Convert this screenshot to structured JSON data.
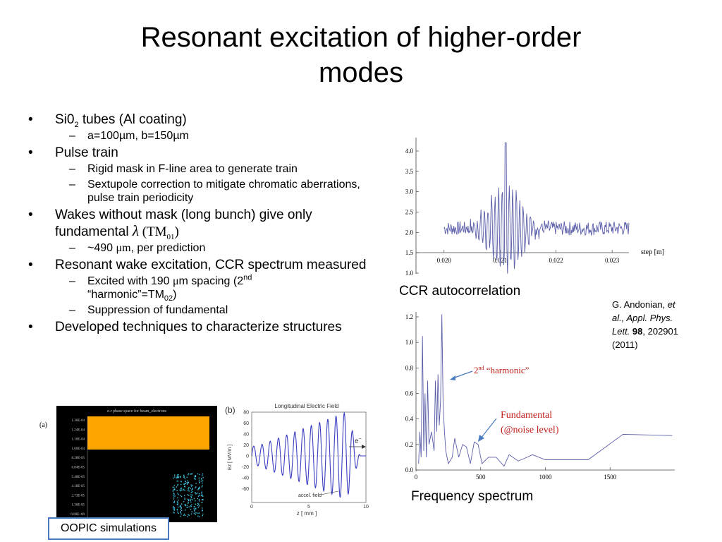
{
  "slide": {
    "title_line1": "Resonant excitation of higher-order",
    "title_line2": "modes"
  },
  "bullets": {
    "b1_pre": "Si0",
    "b1_sub": "2",
    "b1_post": " tubes (Al coating)",
    "b1_s1": "a=100µm, b=150µm",
    "b2": "Pulse train",
    "b2_s1": "Rigid mask in F-line area to generate train",
    "b2_s2": "Sextupole correction to mitigate chromatic aberrations, pulse train periodicity",
    "b3_text": "Wakes without mask (long bunch) give only fundamental ",
    "b3_lambda": "λ",
    "b3_tm": " (TM",
    "b3_tm_sub": "01",
    "b3_tm_end": ")",
    "b3_s1_pre": "~490 ",
    "b3_s1_mu": "μm",
    "b3_s1_post": ", per prediction",
    "b4": "Resonant wake excitation, CCR spectrum measured",
    "b4_s1_pre": "Excited with 190 ",
    "b4_s1_mu": "μ",
    "b4_s1_m": "m spacing (2",
    "b4_s1_sup": "nd",
    "b4_s1_l2": "“harmonic”=TM",
    "b4_s1_sub": "02",
    "b4_s1_end": ")",
    "b4_s2": "Suppression of fundamental",
    "b5": "Developed techniques to characterize structures"
  },
  "captions": {
    "ccr": "CCR autocorrelation",
    "freq": "Frequency spectrum",
    "oopic": "OOPIC simulations",
    "panel_a": "(a)"
  },
  "citation": {
    "authors": "G. Andonian, ",
    "etal": "et al., Appl. Phys. Lett.",
    "vol": "98",
    "rest": ", 202901 (2011)"
  },
  "annotations": {
    "harmonic_num": "2",
    "harmonic_sup": "nd",
    "harmonic_text": " “harmonic”",
    "fund_line1": "Fundamental",
    "fund_line2": "(@noise level)"
  },
  "sim_a": {
    "title": "z-r phase space for beam_electrons",
    "yticks": [
      "1.36E-04",
      "1.24E-04",
      "1.10E-04",
      "1.00E-04",
      "8.28E-05",
      "6.84E-05",
      "5.48E-05",
      "4.18E-05",
      "2.73E-05",
      "1.36E-05",
      "0.00E+00"
    ]
  },
  "sim_b": {
    "label": "(b)",
    "title": "Longitudinal Electric Field",
    "ylabel": "Ez  [ MV/m ]",
    "xlabel": "z  [ mm ]",
    "annotation": "accel. field",
    "electron": "e",
    "yticks": [
      "80",
      "60",
      "40",
      "20",
      "0",
      "-20",
      "-40",
      "-60"
    ],
    "xticks": [
      "0",
      "5",
      "10"
    ]
  },
  "colors": {
    "plot_line": "#5a5ea8",
    "annotation_red": "#c0201c",
    "arrow_blue": "#4a7ac0",
    "sim_orange": "#ffa500",
    "sim_cyan": "#3ec8e6",
    "box_border": "#4a7ac0"
  },
  "chart_data": [
    {
      "type": "line",
      "title": "",
      "xlabel": "step [m]",
      "ylabel": "",
      "xticks": [
        "0.020",
        "0.021",
        "0.022",
        "0.023"
      ],
      "yticks": [
        "1.0",
        "1.5",
        "2.0",
        "2.5",
        "3.0",
        "3.5",
        "4.0"
      ],
      "xlim": [
        0.0195,
        0.0233
      ],
      "ylim": [
        1.0,
        4.25
      ],
      "grid": false,
      "note": "autocorrelation trace, baseline about 2.1, central peak about 4.2 at x 0.0211"
    },
    {
      "type": "line",
      "title": "",
      "xlabel": "",
      "ylabel": "",
      "xticks": [
        "0",
        "500",
        "1000",
        "1500"
      ],
      "yticks": [
        "0.0",
        "0.2",
        "0.4",
        "0.6",
        "0.8",
        "1.0",
        "1.2"
      ],
      "xlim": [
        0,
        2000
      ],
      "ylim": [
        0,
        1.25
      ],
      "grid": false,
      "x": [
        20,
        30,
        40,
        50,
        60,
        70,
        80,
        90,
        100,
        120,
        140,
        150,
        160,
        170,
        180,
        190,
        200,
        210,
        220,
        230,
        250,
        280,
        300,
        330,
        360,
        390,
        420,
        450,
        480,
        510,
        560,
        620,
        680,
        720,
        790,
        860,
        900,
        1000,
        1100,
        1180,
        1330,
        1600,
        1980
      ],
      "y": [
        0.05,
        0.3,
        0.1,
        1.05,
        0.15,
        0.6,
        0.1,
        0.7,
        0.2,
        0.3,
        0.15,
        0.7,
        0.3,
        0.75,
        0.35,
        0.55,
        1.22,
        0.5,
        0.3,
        0.15,
        0.05,
        0.1,
        0.25,
        0.1,
        0.2,
        0.18,
        0.05,
        0.22,
        0.2,
        0.05,
        0.1,
        0.1,
        0.03,
        0.12,
        0.07,
        0.1,
        0.12,
        0.08,
        0.08,
        0.08,
        0.08,
        0.28,
        0.27
      ]
    }
  ]
}
